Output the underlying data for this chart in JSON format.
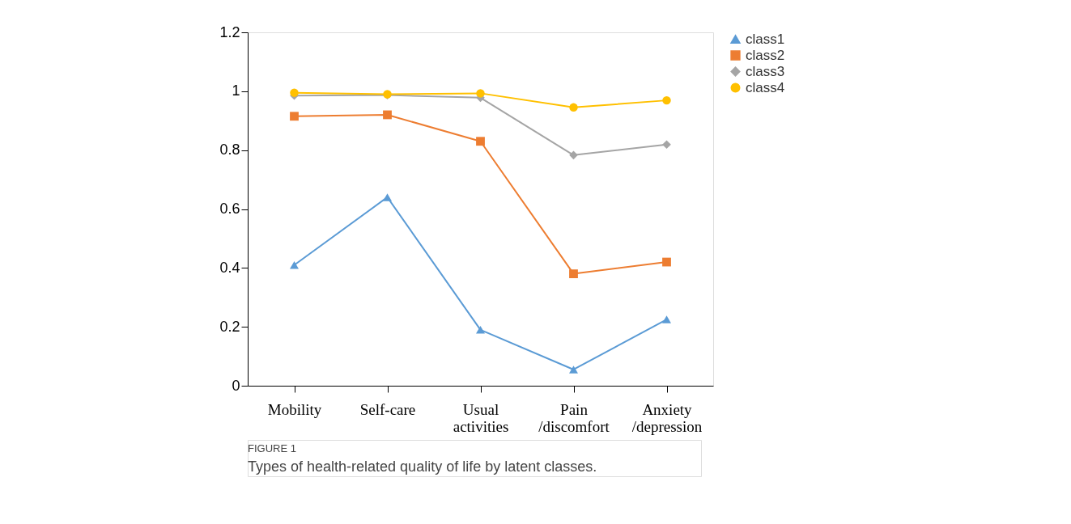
{
  "chart_data": {
    "type": "line",
    "categories": [
      "Mobility",
      "Self-care",
      "Usual activities",
      "Pain /discomfort",
      "Anxiety /depression"
    ],
    "series": [
      {
        "name": "class1",
        "color": "#5b9bd5",
        "marker": "triangle",
        "values": [
          0.41,
          0.64,
          0.19,
          0.055,
          0.225
        ]
      },
      {
        "name": "class2",
        "color": "#ed7d31",
        "marker": "square",
        "values": [
          0.915,
          0.92,
          0.83,
          0.38,
          0.42
        ]
      },
      {
        "name": "class3",
        "color": "#a5a5a5",
        "marker": "diamond",
        "values": [
          0.985,
          0.987,
          0.978,
          0.783,
          0.819
        ]
      },
      {
        "name": "class4",
        "color": "#ffc000",
        "marker": "circle",
        "values": [
          0.995,
          0.99,
          0.993,
          0.945,
          0.969
        ]
      }
    ],
    "ylim": [
      0,
      1.2
    ],
    "yticks": [
      0,
      0.2,
      0.4,
      0.6,
      0.8,
      1,
      1.2
    ],
    "grid": false,
    "legend": "right",
    "line_style": "solid",
    "annotations": [
      "FIGURE 1",
      "Types of health-related quality of life by latent classes."
    ]
  }
}
